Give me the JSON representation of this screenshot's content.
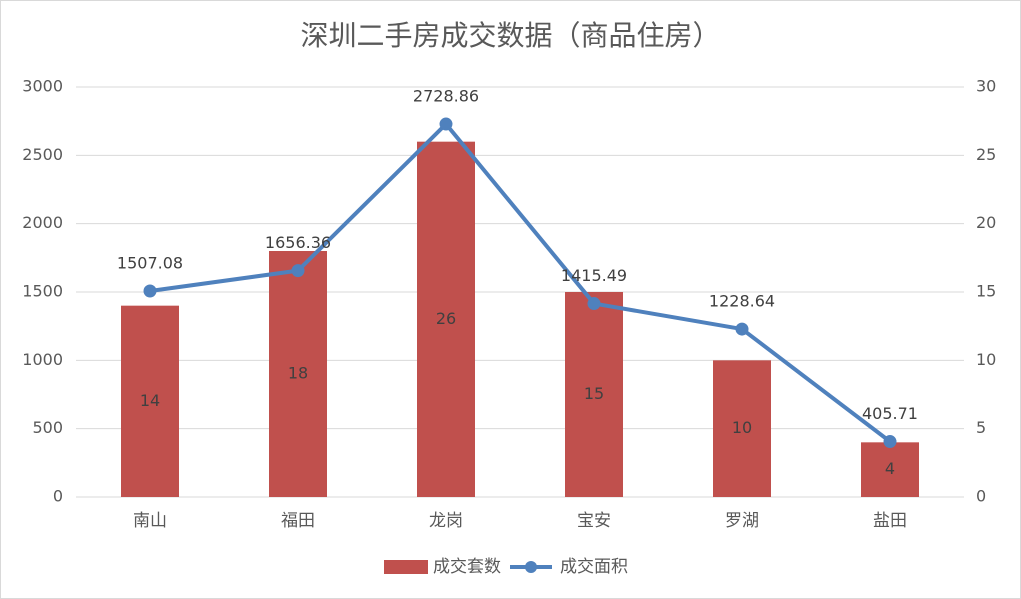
{
  "chart_data": {
    "type": "bar",
    "title": "深圳二手房成交数据（商品住房）",
    "categories": [
      "南山",
      "福田",
      "龙岗",
      "宝安",
      "罗湖",
      "盐田"
    ],
    "series": [
      {
        "name": "成交套数",
        "type": "bar",
        "axis": "right",
        "values": [
          14,
          18,
          26,
          15,
          10,
          4
        ],
        "color": "#C0504D"
      },
      {
        "name": "成交面积",
        "type": "line",
        "axis": "left",
        "values": [
          1507.08,
          1656.36,
          2728.86,
          1415.49,
          1228.64,
          405.71
        ],
        "color": "#4F81BD"
      }
    ],
    "y_left": {
      "min": 0,
      "max": 3000,
      "ticks": [
        0,
        500,
        1000,
        1500,
        2000,
        2500,
        3000
      ]
    },
    "y_right": {
      "min": 0,
      "max": 30,
      "ticks": [
        0,
        5,
        10,
        15,
        20,
        25,
        30
      ]
    },
    "grid": true,
    "legend": "bottom"
  }
}
